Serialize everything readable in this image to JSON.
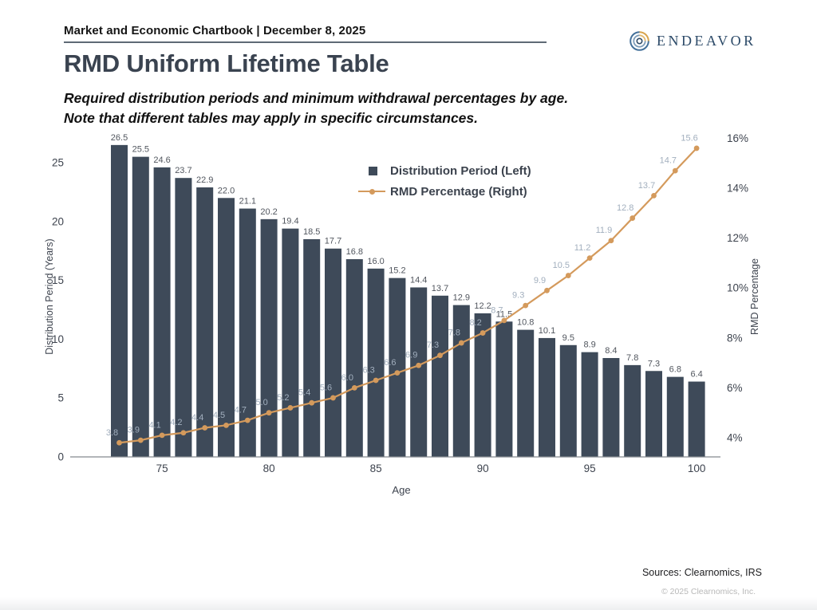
{
  "header": {
    "chartbook_title": "Market and Economic Chartbook | December 8, 2025",
    "brand_name": "ENDEAVOR"
  },
  "page": {
    "title": "RMD Uniform Lifetime Table",
    "subtitle_lines": [
      "Required distribution periods and minimum withdrawal percentages by age.",
      "Note that different tables may apply in specific circumstances."
    ]
  },
  "footer": {
    "sources": "Sources: Clearnomics, IRS",
    "copyright": "© 2025 Clearnomics, Inc."
  },
  "colors": {
    "bar": "#3e4a59",
    "line": "#d49a5c",
    "bar_label": "#51565e",
    "line_label": "#a2afbe",
    "axis_text": "#3d434e",
    "axis_line": "#85898f",
    "title": "#3a4350",
    "brand_navy": "#2c4a68",
    "brand_gold": "#d9a54e"
  },
  "chart_data": {
    "type": "bar+line",
    "x": [
      73,
      74,
      75,
      76,
      77,
      78,
      79,
      80,
      81,
      82,
      83,
      84,
      85,
      86,
      87,
      88,
      89,
      90,
      91,
      92,
      93,
      94,
      95,
      96,
      97,
      98,
      99,
      100
    ],
    "xlabel": "Age",
    "x_ticks": [
      75,
      80,
      85,
      90,
      95,
      100
    ],
    "left_axis": {
      "label": "Distribution Period (Years)",
      "ticks": [
        0,
        5,
        10,
        15,
        20,
        25
      ],
      "range": [
        0,
        27.6
      ]
    },
    "right_axis": {
      "label": "RMD Percentage",
      "ticks": [
        4,
        6,
        8,
        10,
        12,
        14,
        16
      ],
      "tick_suffix": "%",
      "range": [
        3.3,
        16.4
      ]
    },
    "legend_position": "upper-center",
    "grid": "off",
    "series": [
      {
        "name": "Distribution Period (Left)",
        "type": "bar",
        "axis": "left",
        "color": "#3e4a59",
        "values": [
          26.5,
          25.5,
          24.6,
          23.7,
          22.9,
          22.0,
          21.1,
          20.2,
          19.4,
          18.5,
          17.7,
          16.8,
          16.0,
          15.2,
          14.4,
          13.7,
          12.9,
          12.2,
          11.5,
          10.8,
          10.1,
          9.5,
          8.9,
          8.4,
          7.8,
          7.3,
          6.8,
          6.4
        ]
      },
      {
        "name": "RMD Percentage (Right)",
        "type": "line",
        "axis": "right",
        "color": "#d49a5c",
        "values": [
          3.8,
          3.9,
          4.1,
          4.2,
          4.4,
          4.5,
          4.7,
          5.0,
          5.2,
          5.4,
          5.6,
          6.0,
          6.3,
          6.6,
          6.9,
          7.3,
          7.8,
          8.2,
          8.7,
          9.3,
          9.9,
          10.5,
          11.2,
          11.9,
          12.8,
          13.7,
          14.7,
          15.6
        ]
      }
    ]
  }
}
